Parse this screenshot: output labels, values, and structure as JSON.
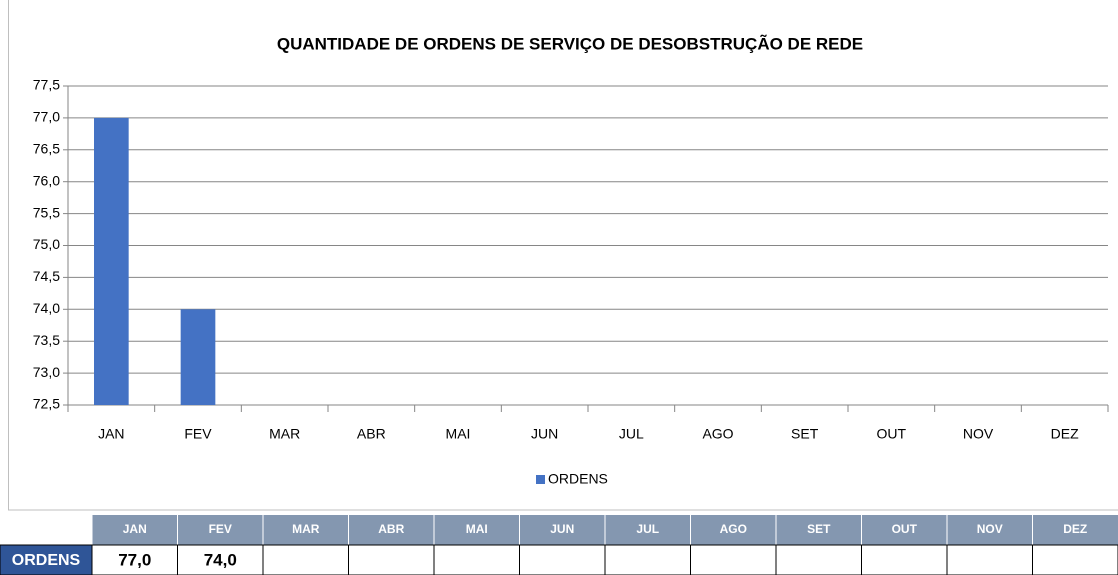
{
  "chart_data": {
    "type": "bar",
    "title": "QUANTIDADE DE ORDENS DE SERVIÇO DE DESOBSTRUÇÃO DE REDE",
    "categories": [
      "JAN",
      "FEV",
      "MAR",
      "ABR",
      "MAI",
      "JUN",
      "JUL",
      "AGO",
      "SET",
      "OUT",
      "NOV",
      "DEZ"
    ],
    "series": [
      {
        "name": "ORDENS",
        "color": "#4472c4",
        "values": [
          77,
          74,
          null,
          null,
          null,
          null,
          null,
          null,
          null,
          null,
          null,
          null
        ],
        "value_labels": [
          "77,0",
          "74,0",
          null,
          null,
          null,
          null,
          null,
          null,
          null,
          null,
          null,
          null
        ]
      }
    ],
    "ylim": [
      72.5,
      77.5
    ],
    "yticks": [
      {
        "value": 72.5,
        "label": "72,5"
      },
      {
        "value": 73,
        "label": "73,0"
      },
      {
        "value": 73.5,
        "label": "73,5"
      },
      {
        "value": 74,
        "label": "74,0"
      },
      {
        "value": 74.5,
        "label": "74,5"
      },
      {
        "value": 75,
        "label": "75,0"
      },
      {
        "value": 75.5,
        "label": "75,5"
      },
      {
        "value": 76,
        "label": "76,0"
      },
      {
        "value": 76.5,
        "label": "76,5"
      },
      {
        "value": 77,
        "label": "77,0"
      },
      {
        "value": 77.5,
        "label": "77,5"
      }
    ],
    "grid": true,
    "legend": "bottom"
  }
}
